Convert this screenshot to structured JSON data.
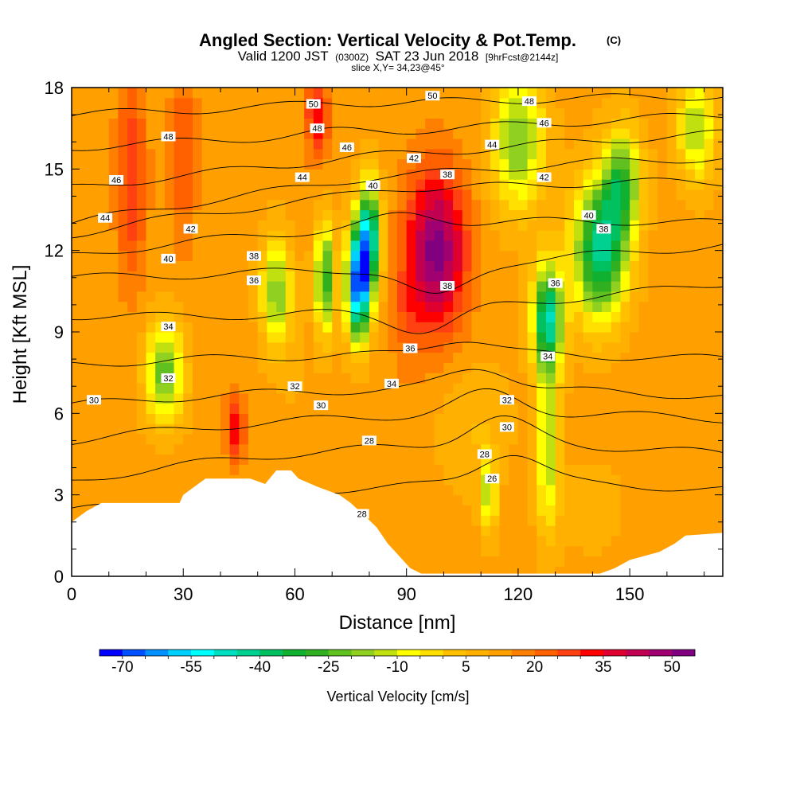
{
  "chart_data": {
    "type": "heatmap",
    "title": "Angled Section: Vertical Velocity & Pot.Temp.",
    "title_unit": "(C)",
    "subtitle": {
      "valid": "Valid 1200 JST",
      "utc": "(0300Z)",
      "date": "SAT 23 Jun 2018",
      "forecast": "[9hrFcst@2144z]",
      "slice": "slice X,Y= 34,23@45°"
    },
    "xlabel": "Distance [nm]",
    "ylabel": "Height [Kft MSL]",
    "xlim": [
      0,
      175
    ],
    "ylim": [
      0,
      18
    ],
    "x_ticks": [
      0,
      30,
      60,
      90,
      120,
      150
    ],
    "y_ticks": [
      0,
      3,
      6,
      9,
      12,
      15,
      18
    ],
    "colorbar": {
      "label": "Vertical Velocity [cm/s]",
      "min": -75,
      "max": 55,
      "step": 5,
      "tick_labels": [
        -70,
        -55,
        -40,
        -25,
        -10,
        5,
        20,
        35,
        50
      ],
      "colors": [
        "#0000ff",
        "#0050ff",
        "#0090ff",
        "#00d0ff",
        "#00ffff",
        "#00e0c0",
        "#00d090",
        "#00c060",
        "#10b030",
        "#30b020",
        "#60c020",
        "#90d020",
        "#c0e010",
        "#ffff00",
        "#ffe000",
        "#ffc000",
        "#ffb000",
        "#ffa000",
        "#ff8000",
        "#ff6000",
        "#ff4010",
        "#ff0000",
        "#e00030",
        "#c00050",
        "#a00070",
        "#800080"
      ]
    },
    "terrain_kft": [
      [
        0,
        2.0
      ],
      [
        4,
        2.4
      ],
      [
        8,
        2.7
      ],
      [
        20,
        2.7
      ],
      [
        29,
        2.7
      ],
      [
        30,
        3.0
      ],
      [
        33,
        3.3
      ],
      [
        36,
        3.6
      ],
      [
        48,
        3.6
      ],
      [
        52,
        3.4
      ],
      [
        55,
        3.9
      ],
      [
        59,
        3.9
      ],
      [
        61,
        3.6
      ],
      [
        66,
        3.3
      ],
      [
        72,
        3.0
      ],
      [
        75,
        2.7
      ],
      [
        79,
        2.2
      ],
      [
        82,
        1.8
      ],
      [
        85,
        1.2
      ],
      [
        87,
        0.9
      ],
      [
        89,
        0.6
      ],
      [
        91,
        0.3
      ],
      [
        94,
        0.1
      ],
      [
        142,
        0.1
      ],
      [
        146,
        0.3
      ],
      [
        150,
        0.6
      ],
      [
        158,
        0.9
      ],
      [
        162,
        1.2
      ],
      [
        165,
        1.5
      ],
      [
        175,
        1.6
      ]
    ],
    "velocity_features": [
      {
        "x": 16,
        "z": 14.5,
        "sx": 4,
        "sz": 4,
        "value": 30
      },
      {
        "x": 30,
        "z": 15.5,
        "sx": 3.5,
        "sz": 3.5,
        "value": 25
      },
      {
        "x": 66,
        "z": 17,
        "sx": 3,
        "sz": 1.5,
        "value": 35
      },
      {
        "x": 44,
        "z": 5.5,
        "sx": 2.5,
        "sz": 1.3,
        "value": 33
      },
      {
        "x": 98,
        "z": 12,
        "sx": 8,
        "sz": 3,
        "value": 52
      },
      {
        "x": 90,
        "z": 9.5,
        "sx": 4,
        "sz": 2,
        "value": 20
      },
      {
        "x": 77,
        "z": 10.8,
        "sx": 3,
        "sz": 2,
        "value": -68
      },
      {
        "x": 80,
        "z": 12.5,
        "sx": 3,
        "sz": 2,
        "value": -45
      },
      {
        "x": 68,
        "z": 11,
        "sx": 2.5,
        "sz": 2,
        "value": -30
      },
      {
        "x": 128,
        "z": 9.5,
        "sx": 4,
        "sz": 2,
        "value": -45
      },
      {
        "x": 142,
        "z": 12,
        "sx": 7,
        "sz": 2.5,
        "value": -42
      },
      {
        "x": 148,
        "z": 14.5,
        "sx": 5,
        "sz": 2,
        "value": -25
      },
      {
        "x": 25,
        "z": 7.5,
        "sx": 5,
        "sz": 1.8,
        "value": -25
      },
      {
        "x": 128,
        "z": 4.5,
        "sx": 3,
        "sz": 3,
        "value": -15
      },
      {
        "x": 112,
        "z": 3,
        "sx": 2,
        "sz": 1.5,
        "value": -15
      },
      {
        "x": 55,
        "z": 10.5,
        "sx": 4,
        "sz": 2,
        "value": -20
      },
      {
        "x": 120,
        "z": 16,
        "sx": 7,
        "sz": 2.5,
        "value": -20
      },
      {
        "x": 168,
        "z": 16.5,
        "sx": 5,
        "sz": 2,
        "value": -15
      },
      {
        "x": 160,
        "z": 7,
        "sx": 6,
        "sz": 3,
        "value": 12
      },
      {
        "x": 108,
        "z": 5.5,
        "sx": 10,
        "sz": 2.5,
        "value": 5
      },
      {
        "x": 60,
        "z": 7,
        "sx": 6,
        "sz": 2.5,
        "value": 10
      },
      {
        "x": 140,
        "z": 2.5,
        "sx": 10,
        "sz": 2,
        "value": 8
      },
      {
        "x": 10,
        "z": 10,
        "sx": 6,
        "sz": 3,
        "value": 10
      }
    ],
    "isentropes": [
      {
        "theta": 26,
        "z_left": 2.4,
        "z_right": 3.2,
        "z_center": 3.8,
        "dip_x": 118,
        "dip_z": 1.2
      },
      {
        "theta": 28,
        "z_left": 3.5,
        "z_right": 4.5,
        "z_center": 5.5,
        "dip_x": 115,
        "dip_z": 1.0
      },
      {
        "theta": 30,
        "z_left": 5.0,
        "z_right": 5.8,
        "z_center": 6.4,
        "dip_x": 112,
        "dip_z": 0.8
      },
      {
        "theta": 32,
        "z_left": 6.3,
        "z_right": 6.6,
        "z_center": 7.3,
        "dip_x": 110,
        "dip_z": 0.8
      },
      {
        "theta": 34,
        "z_left": 7.8,
        "z_right": 8.0,
        "z_center": 8.4,
        "dip_x": 105,
        "dip_z": 0.6
      },
      {
        "theta": 36,
        "z_left": 9.6,
        "z_right": 10.8,
        "z_center": 9.4,
        "dip_x": 95,
        "dip_z": -0.8
      },
      {
        "theta": 38,
        "z_left": 11.0,
        "z_right": 12.2,
        "z_center": 11.2,
        "dip_x": 98,
        "dip_z": -1.2
      },
      {
        "theta": 40,
        "z_left": 11.8,
        "z_right": 13.0,
        "z_center": 13.4,
        "dip_x": 90,
        "dip_z": 0.4
      },
      {
        "theta": 42,
        "z_left": 12.6,
        "z_right": 14.5,
        "z_center": 14.7,
        "dip_x": 85,
        "dip_z": 0.2
      },
      {
        "theta": 44,
        "z_left": 13.0,
        "z_right": 15.4,
        "z_center": 15.2,
        "dip_x": 80,
        "dip_z": 0.1
      },
      {
        "theta": 46,
        "z_left": 14.3,
        "z_right": 16.3,
        "z_center": 15.7,
        "dip_x": 75,
        "dip_z": 0.1
      },
      {
        "theta": 48,
        "z_left": 15.8,
        "z_right": 17.0,
        "z_center": 16.4,
        "dip_x": 70,
        "dip_z": 0.1
      },
      {
        "theta": 50,
        "z_left": 17.0,
        "z_right": 17.7,
        "z_center": 17.5,
        "dip_x": 70,
        "dip_z": 0.1
      }
    ],
    "contour_labels": [
      {
        "text": "50",
        "x": 65,
        "z": 17.4
      },
      {
        "text": "50",
        "x": 97,
        "z": 17.7
      },
      {
        "text": "48",
        "x": 26,
        "z": 16.2
      },
      {
        "text": "48",
        "x": 66,
        "z": 16.5
      },
      {
        "text": "48",
        "x": 123,
        "z": 17.5
      },
      {
        "text": "46",
        "x": 12,
        "z": 14.6
      },
      {
        "text": "46",
        "x": 74,
        "z": 15.8
      },
      {
        "text": "46",
        "x": 127,
        "z": 16.7
      },
      {
        "text": "44",
        "x": 9,
        "z": 13.2
      },
      {
        "text": "44",
        "x": 62,
        "z": 14.7
      },
      {
        "text": "44",
        "x": 113,
        "z": 15.9
      },
      {
        "text": "42",
        "x": 32,
        "z": 12.8
      },
      {
        "text": "42",
        "x": 92,
        "z": 15.4
      },
      {
        "text": "42",
        "x": 127,
        "z": 14.7
      },
      {
        "text": "40",
        "x": 26,
        "z": 11.7
      },
      {
        "text": "40",
        "x": 81,
        "z": 14.4
      },
      {
        "text": "40",
        "x": 139,
        "z": 13.3
      },
      {
        "text": "38",
        "x": 49,
        "z": 11.8
      },
      {
        "text": "38",
        "x": 101,
        "z": 14.8
      },
      {
        "text": "38",
        "x": 101,
        "z": 10.7
      },
      {
        "text": "38",
        "x": 143,
        "z": 12.8
      },
      {
        "text": "36",
        "x": 49,
        "z": 10.9
      },
      {
        "text": "36",
        "x": 91,
        "z": 8.4
      },
      {
        "text": "36",
        "x": 130,
        "z": 10.8
      },
      {
        "text": "34",
        "x": 26,
        "z": 9.2
      },
      {
        "text": "34",
        "x": 86,
        "z": 7.1
      },
      {
        "text": "34",
        "x": 128,
        "z": 8.1
      },
      {
        "text": "32",
        "x": 26,
        "z": 7.3
      },
      {
        "text": "32",
        "x": 60,
        "z": 7.0
      },
      {
        "text": "32",
        "x": 117,
        "z": 6.5
      },
      {
        "text": "30",
        "x": 6,
        "z": 6.5
      },
      {
        "text": "30",
        "x": 67,
        "z": 6.3
      },
      {
        "text": "30",
        "x": 117,
        "z": 5.5
      },
      {
        "text": "28",
        "x": 80,
        "z": 5.0
      },
      {
        "text": "28",
        "x": 111,
        "z": 4.5
      },
      {
        "text": "28",
        "x": 78,
        "z": 2.3
      },
      {
        "text": "26",
        "x": 113,
        "z": 3.6
      }
    ]
  }
}
